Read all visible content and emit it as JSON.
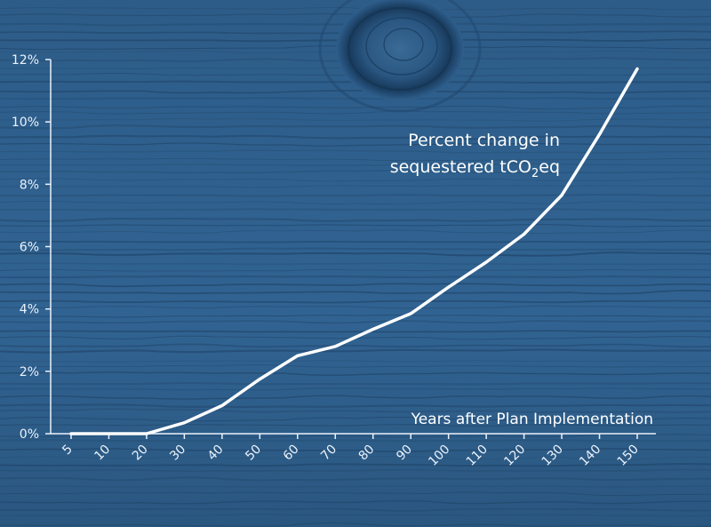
{
  "colors": {
    "background": "#2f5f8d",
    "wood_dark": "#1f4468",
    "line": "#ffffff",
    "axis": "#eaf2fb"
  },
  "chart_data": {
    "type": "line",
    "title": "",
    "annotation": {
      "line1": "Percent change in",
      "line2_before": "sequestered tCO",
      "line2_sub": "2",
      "line2_after": "eq"
    },
    "xlabel": "Years after Plan Implementation",
    "ylabel": "",
    "categories": [
      "5",
      "10",
      "20",
      "30",
      "40",
      "50",
      "60",
      "70",
      "80",
      "90",
      "100",
      "110",
      "120",
      "130",
      "140",
      "150"
    ],
    "values": [
      0.0,
      0.0,
      0.0,
      0.35,
      0.9,
      1.75,
      2.5,
      2.8,
      3.35,
      3.85,
      4.7,
      5.5,
      6.4,
      7.65,
      9.6,
      11.7
    ],
    "ylim": [
      0,
      12
    ],
    "yticks": [
      "0%",
      "2%",
      "4%",
      "6%",
      "8%",
      "10%",
      "12%"
    ],
    "ytick_values": [
      0,
      2,
      4,
      6,
      8,
      10,
      12
    ],
    "grid": false,
    "legend": "none"
  }
}
